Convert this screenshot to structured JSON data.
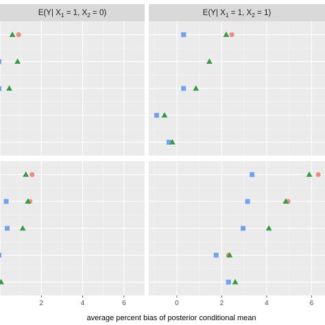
{
  "chart_data": {
    "type": "scatter",
    "xlabel": "average percent bias of posterior conditional mean",
    "grid": true,
    "legend": "none",
    "colors": {
      "circle": "#f08a83",
      "square": "#6fa3f2",
      "triangle": "#2f9e3f"
    },
    "panels": [
      {
        "id": "top-left",
        "strip": {
          "prefix": "E(Y| X",
          "s1": "1",
          "m1": " = 1, X",
          "s2": "2",
          "m2": " = 0)"
        },
        "xlim": [
          0,
          7
        ],
        "ylim": [
          0.5,
          5.5
        ],
        "xticks": [],
        "series": [
          {
            "marker": "circle",
            "points": [
              [
                0.9,
                5
              ]
            ]
          },
          {
            "marker": "triangle",
            "points": [
              [
                0.6,
                5
              ],
              [
                0.85,
                4
              ],
              [
                0.45,
                3
              ]
            ]
          },
          {
            "marker": "square",
            "points": [
              [
                -0.05,
                4
              ],
              [
                -0.05,
                3
              ]
            ]
          }
        ]
      },
      {
        "id": "top-right",
        "strip": {
          "prefix": "E(Y| X",
          "s1": "1",
          "m1": " = 1, X",
          "s2": "2",
          "m2": " = 1)"
        },
        "xlim": [
          -1.25,
          6.6
        ],
        "ylim": [
          0.5,
          5.5
        ],
        "xticks": [],
        "series": [
          {
            "marker": "circle",
            "points": [
              [
                2.45,
                5
              ]
            ]
          },
          {
            "marker": "triangle",
            "points": [
              [
                2.2,
                5
              ],
              [
                1.45,
                4
              ],
              [
                0.85,
                3
              ],
              [
                -0.55,
                2
              ],
              [
                -0.2,
                1
              ]
            ]
          },
          {
            "marker": "square",
            "points": [
              [
                0.3,
                5
              ],
              [
                0.3,
                3
              ],
              [
                -0.9,
                2
              ],
              [
                -0.35,
                1
              ]
            ]
          }
        ]
      },
      {
        "id": "bottom-left",
        "strip": null,
        "xlim": [
          0,
          7
        ],
        "ylim": [
          0.5,
          5.5
        ],
        "xticks": [
          2,
          4,
          6
        ],
        "tick_labels": [
          "2",
          "4",
          "6"
        ],
        "series": [
          {
            "marker": "circle",
            "points": [
              [
                1.55,
                5
              ],
              [
                1.45,
                4
              ]
            ]
          },
          {
            "marker": "triangle",
            "points": [
              [
                1.25,
                5
              ],
              [
                1.35,
                4
              ],
              [
                1.1,
                3
              ],
              [
                0.05,
                1
              ]
            ]
          },
          {
            "marker": "square",
            "points": [
              [
                0.3,
                4
              ],
              [
                0.35,
                3
              ],
              [
                -0.05,
                2
              ]
            ]
          }
        ]
      },
      {
        "id": "bottom-right",
        "strip": null,
        "xlim": [
          -1.25,
          6.6
        ],
        "ylim": [
          0.5,
          5.5
        ],
        "xticks": [
          0,
          2,
          4,
          6
        ],
        "tick_labels": [
          "0",
          "2",
          "4",
          "6"
        ],
        "series": [
          {
            "marker": "circle",
            "points": [
              [
                6.3,
                5
              ],
              [
                4.95,
                4
              ],
              [
                2.3,
                2
              ]
            ]
          },
          {
            "marker": "triangle",
            "points": [
              [
                5.9,
                5
              ],
              [
                4.85,
                4
              ],
              [
                4.1,
                3
              ],
              [
                2.35,
                2
              ],
              [
                2.6,
                1
              ]
            ]
          },
          {
            "marker": "square",
            "points": [
              [
                3.35,
                5
              ],
              [
                3.15,
                4
              ],
              [
                2.95,
                3
              ],
              [
                1.75,
                2
              ],
              [
                2.3,
                1
              ]
            ]
          }
        ]
      }
    ]
  }
}
